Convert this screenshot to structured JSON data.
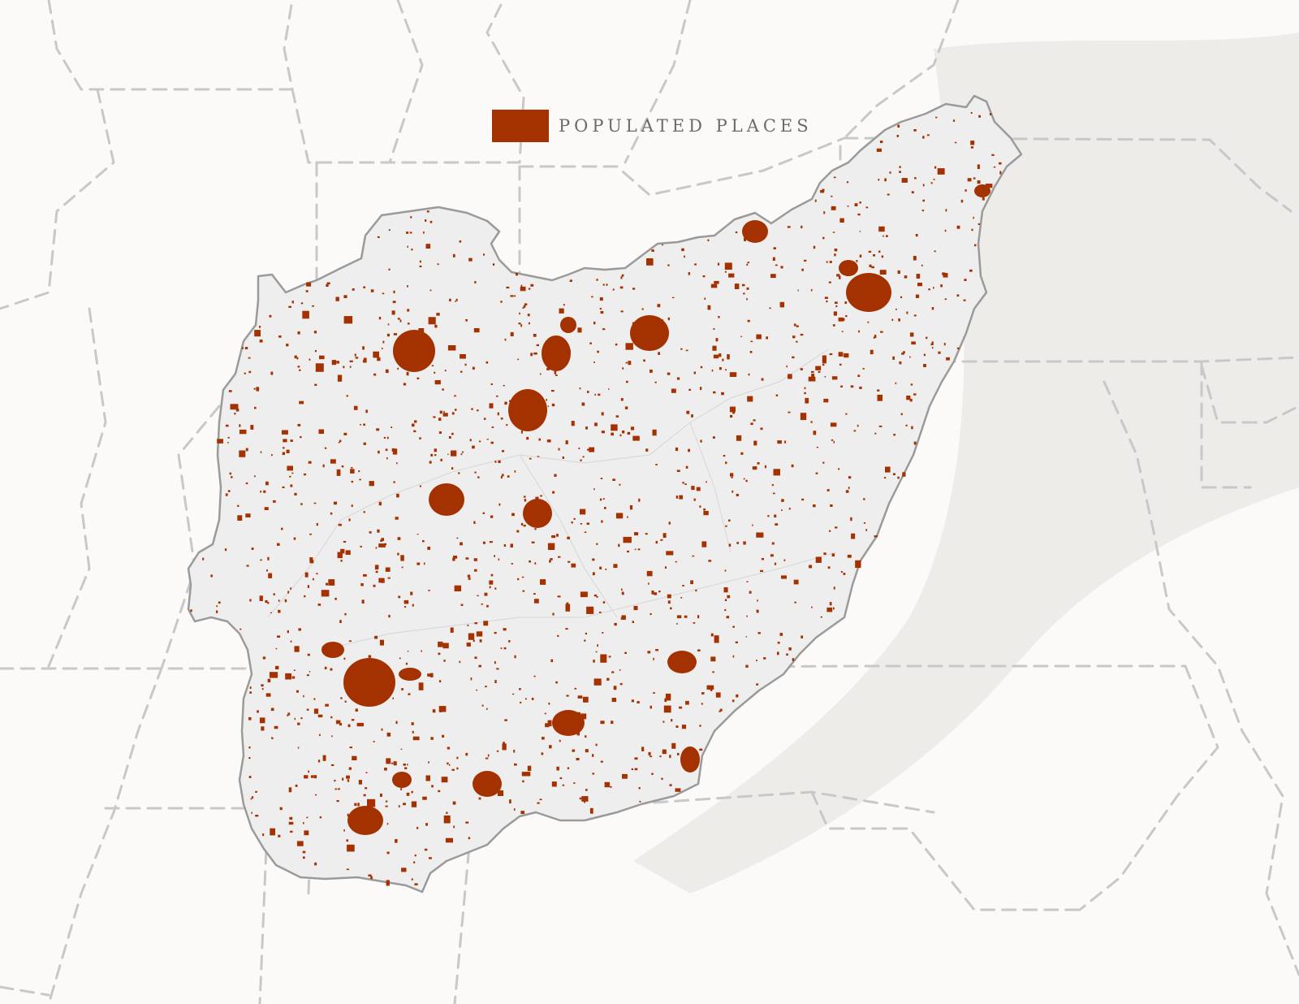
{
  "legend": {
    "label": "POPULATED PLACES",
    "swatch_color": "#a33200"
  },
  "colors": {
    "background": "#fbfaf8",
    "basin_fill": "#efeeee",
    "basin_outline": "#9a9a9a",
    "state_borders": "#c8c8c8",
    "terrain_shade": "#eceae6",
    "populated_places": "#a33200"
  },
  "map": {
    "feature": "river-basin",
    "places_layer": "populated-places",
    "boundaries_layer": "state-boundaries",
    "terrain_layer": "hillshade-relief"
  }
}
